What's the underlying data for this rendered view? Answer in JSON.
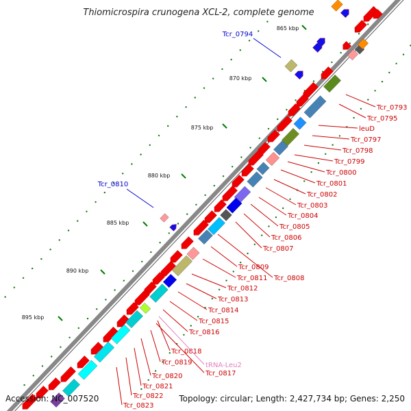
{
  "title": "Thiomicrospira crunogena XCL-2, complete genome",
  "accession": "Accession: NC_007520",
  "summary": "Topology: circular; Length: 2,427,734 bp; Genes: 2,250",
  "colors": {
    "forward_label": "#0000cc",
    "reverse_label": "#cc0000",
    "trna_label": "#e080c0",
    "backbone": "#808080",
    "cds": "#ff0000",
    "tick": "#007a00"
  },
  "kbp_ticks": [
    "865 kbp",
    "870 kbp",
    "875 kbp",
    "880 kbp",
    "885 kbp",
    "890 kbp",
    "895 kbp"
  ],
  "forward_labels": [
    "Tcr_0794",
    "Tcr_0810"
  ],
  "reverse_labels": [
    "Tcr_0793",
    "Tcr_0795",
    "leuD",
    "Tcr_0797",
    "Tcr_0798",
    "Tcr_0799",
    "Tcr_0800",
    "Tcr_0801",
    "Tcr_0802",
    "Tcr_0803",
    "Tcr_0804",
    "Tcr_0805",
    "Tcr_0806",
    "Tcr_0807",
    "Tcr_0809",
    "Tcr_0811",
    "Tcr_0808",
    "Tcr_0812",
    "Tcr_0813",
    "Tcr_0814",
    "Tcr_0815",
    "Tcr_0816",
    "Tcr_0818",
    "Tcr_0819",
    "tRNA-Leu2",
    "Tcr_0817",
    "Tcr_0820",
    "Tcr_0821",
    "Tcr_0822",
    "Tcr_0823"
  ]
}
